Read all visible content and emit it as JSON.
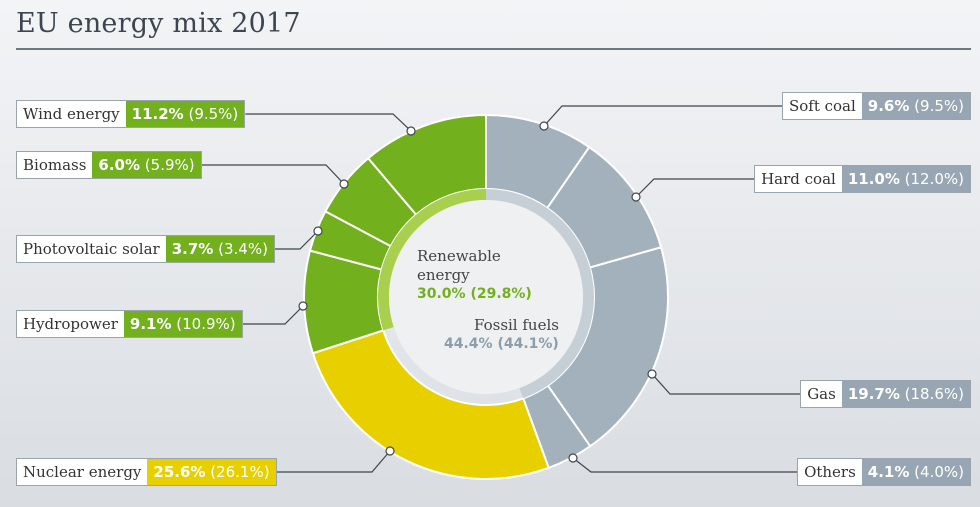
{
  "title": "EU energy mix 2017",
  "colors": {
    "wind": "#72b01d",
    "biomass": "#72b01d",
    "solar": "#72b01d",
    "hydro": "#72b01d",
    "nuclear": "#e8d000",
    "fossil": "#a3b1bc",
    "renewable_text": "#72b01d",
    "fossil_text": "#8d9daa"
  },
  "center": {
    "renewable_line1": "Renewable",
    "renewable_line2": "energy",
    "renewable_value": "30.0% (29.8%)",
    "fossil_label": "Fossil fuels",
    "fossil_value": "44.4% (44.1%)"
  },
  "chart_data": {
    "type": "pie",
    "title": "EU energy mix 2017",
    "slices": [
      {
        "label": "Soft coal",
        "value": 9.6,
        "prev": 9.5,
        "text": "9.6%",
        "prev_text": "(9.5%)",
        "group": "fossil"
      },
      {
        "label": "Hard coal",
        "value": 11.0,
        "prev": 12.0,
        "text": "11.0%",
        "prev_text": "(12.0%)",
        "group": "fossil"
      },
      {
        "label": "Gas",
        "value": 19.7,
        "prev": 18.6,
        "text": "19.7%",
        "prev_text": "(18.6%)",
        "group": "fossil"
      },
      {
        "label": "Others",
        "value": 4.1,
        "prev": 4.0,
        "text": "4.1%",
        "prev_text": "(4.0%)",
        "group": "fossil"
      },
      {
        "label": "Nuclear energy",
        "value": 25.6,
        "prev": 26.1,
        "text": "25.6%",
        "prev_text": "(26.1%)",
        "group": "nuclear"
      },
      {
        "label": "Hydropower",
        "value": 9.1,
        "prev": 10.9,
        "text": "9.1%",
        "prev_text": "(10.9%)",
        "group": "renewable"
      },
      {
        "label": "Photovoltaic solar",
        "value": 3.7,
        "prev": 3.4,
        "text": "3.7%",
        "prev_text": "(3.4%)",
        "group": "renewable"
      },
      {
        "label": "Biomass",
        "value": 6.0,
        "prev": 5.9,
        "text": "6.0%",
        "prev_text": "(5.9%)",
        "group": "renewable"
      },
      {
        "label": "Wind energy",
        "value": 11.2,
        "prev": 9.5,
        "text": "11.2%",
        "prev_text": "(9.5%)",
        "group": "renewable"
      }
    ],
    "groups": [
      {
        "name": "Renewable energy",
        "value": 30.0,
        "prev": 29.8
      },
      {
        "name": "Fossil fuels",
        "value": 44.4,
        "prev": 44.1
      }
    ]
  }
}
